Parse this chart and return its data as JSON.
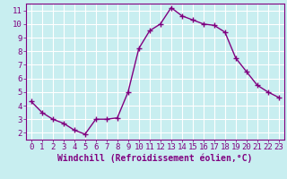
{
  "x": [
    0,
    1,
    2,
    3,
    4,
    5,
    6,
    7,
    8,
    9,
    10,
    11,
    12,
    13,
    14,
    15,
    16,
    17,
    18,
    19,
    20,
    21,
    22,
    23
  ],
  "y": [
    4.3,
    3.5,
    3.0,
    2.7,
    2.2,
    1.9,
    3.0,
    3.0,
    3.1,
    5.0,
    8.2,
    9.5,
    10.0,
    11.2,
    10.6,
    10.3,
    10.0,
    9.9,
    9.4,
    7.5,
    6.5,
    5.5,
    5.0,
    4.6
  ],
  "line_color": "#800080",
  "marker": "+",
  "marker_size": 4,
  "bg_color": "#c8eef0",
  "grid_color": "#ffffff",
  "xlabel": "Windchill (Refroidissement éolien,°C)",
  "xlim": [
    -0.5,
    23.5
  ],
  "ylim": [
    1.5,
    11.5
  ],
  "xticks": [
    0,
    1,
    2,
    3,
    4,
    5,
    6,
    7,
    8,
    9,
    10,
    11,
    12,
    13,
    14,
    15,
    16,
    17,
    18,
    19,
    20,
    21,
    22,
    23
  ],
  "yticks": [
    2,
    3,
    4,
    5,
    6,
    7,
    8,
    9,
    10,
    11
  ],
  "tick_color": "#800080",
  "label_color": "#800080",
  "xlabel_fontsize": 7,
  "tick_fontsize": 6.5,
  "line_width": 1.0,
  "marker_edge_width": 1.0
}
